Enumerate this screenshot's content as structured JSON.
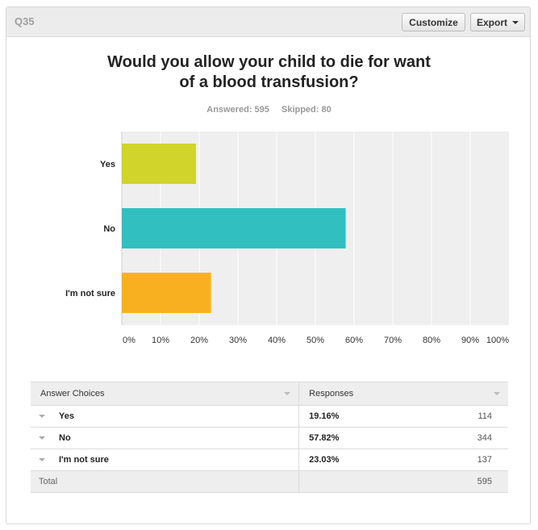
{
  "header": {
    "question_number": "Q35",
    "customize_label": "Customize",
    "export_label": "Export"
  },
  "title_line1": "Would you allow your child to die for want",
  "title_line2": "of a blood transfusion?",
  "stats": {
    "answered": "Answered: 595",
    "skipped": "Skipped: 80"
  },
  "colors": {
    "yes": "#d1d42a",
    "no": "#32bfc0",
    "not_sure": "#f8b020",
    "plot_bg": "#efefef",
    "grid": "#ffffff"
  },
  "chart_data": {
    "type": "bar",
    "orientation": "horizontal",
    "categories": [
      "Yes",
      "No",
      "I'm not sure"
    ],
    "values": [
      19.16,
      57.82,
      23.03
    ],
    "xlim": [
      0,
      100
    ],
    "xticks": [
      "0%",
      "10%",
      "20%",
      "30%",
      "40%",
      "50%",
      "60%",
      "70%",
      "80%",
      "90%",
      "100%"
    ],
    "grid": true,
    "title": "Would you allow your child to die for want of a blood transfusion?"
  },
  "table": {
    "col_choices": "Answer Choices",
    "col_responses": "Responses",
    "rows": [
      {
        "choice": "Yes",
        "pct": "19.16%",
        "count": "114"
      },
      {
        "choice": "No",
        "pct": "57.82%",
        "count": "344"
      },
      {
        "choice": "I'm not sure",
        "pct": "23.03%",
        "count": "137"
      }
    ],
    "total_label": "Total",
    "total_count": "595"
  }
}
